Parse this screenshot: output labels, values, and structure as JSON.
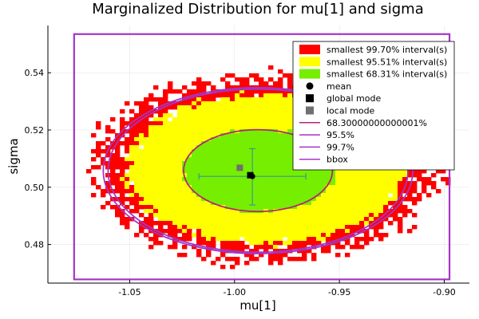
{
  "chart_data": {
    "type": "heatmap",
    "title": "Marginalized Distribution for mu[1] and sigma",
    "xlabel": "mu[1]",
    "ylabel": "sigma",
    "xlim": [
      -1.089,
      -0.888
    ],
    "ylim": [
      0.4665,
      0.5565
    ],
    "xticks": [
      -1.05,
      -1.0,
      -0.95,
      -0.9
    ],
    "xtick_labels": [
      "-1.05",
      "-1.00",
      "-0.95",
      "-0.90"
    ],
    "yticks": [
      0.48,
      0.5,
      0.52,
      0.54
    ],
    "ytick_labels": [
      "0.48",
      "0.50",
      "0.52",
      "0.54"
    ],
    "grid": true,
    "legend_position": "top-right",
    "regions": [
      {
        "name": "smallest 99.70% interval(s)",
        "color": "#ff0000",
        "cx": -0.985,
        "cy": 0.5068,
        "rx": 0.082,
        "ry": 0.0325
      },
      {
        "name": "smallest 95.51% interval(s)",
        "color": "#ffff00",
        "cx": -0.985,
        "cy": 0.5065,
        "rx": 0.0665,
        "ry": 0.0265
      },
      {
        "name": "smallest 68.31% interval(s)",
        "color": "#76ee00",
        "cx": -0.988,
        "cy": 0.5058,
        "rx": 0.0365,
        "ry": 0.0148
      }
    ],
    "mean": {
      "label": "mean",
      "x": -0.9915,
      "y": 0.5038
    },
    "global_mode": {
      "label": "global mode",
      "x": -0.9925,
      "y": 0.5042
    },
    "local_mode": {
      "label": "local mode",
      "x": -0.9975,
      "y": 0.5068
    },
    "error_bars": {
      "x_low": -1.017,
      "x_high": -0.966,
      "y_low": 0.4938,
      "y_high": 0.5135,
      "color": "#2a8ea0"
    },
    "ellipses": [
      {
        "label": "68.30000000000001%",
        "color": "#b6237a",
        "cx": -0.9888,
        "cy": 0.5058,
        "rx": 0.0355,
        "ry": 0.0143
      },
      {
        "label": "95.5%",
        "color": "#a535c8",
        "cx": -0.9888,
        "cy": 0.5058,
        "rx": 0.0715,
        "ry": 0.0285
      },
      {
        "label": "99.7%",
        "color": "#a535c8",
        "cx": -0.9888,
        "cy": 0.5058,
        "rx": 0.0738,
        "ry": 0.029
      }
    ],
    "bbox": {
      "label": "bbox",
      "color": "#a535c8",
      "x_min": -1.0765,
      "x_max": -0.8975,
      "y_min": 0.4678,
      "y_max": 0.5535
    },
    "legend_entries": [
      {
        "label": "smallest 99.70% interval(s)",
        "kind": "patch",
        "color": "#ff0000"
      },
      {
        "label": "smallest 95.51% interval(s)",
        "kind": "patch",
        "color": "#ffff00"
      },
      {
        "label": "smallest 68.31% interval(s)",
        "kind": "patch",
        "color": "#76ee00"
      },
      {
        "label": "mean",
        "kind": "circle",
        "color": "#000000"
      },
      {
        "label": "global mode",
        "kind": "square",
        "color": "#000000"
      },
      {
        "label": "local mode",
        "kind": "square",
        "color": "#707070"
      },
      {
        "label": "68.30000000000001%",
        "kind": "line",
        "color": "#b6237a"
      },
      {
        "label": "95.5%",
        "kind": "line",
        "color": "#a535c8"
      },
      {
        "label": "99.7%",
        "kind": "line",
        "color": "#a535c8"
      },
      {
        "label": "bbox",
        "kind": "line",
        "color": "#a535c8"
      }
    ]
  }
}
